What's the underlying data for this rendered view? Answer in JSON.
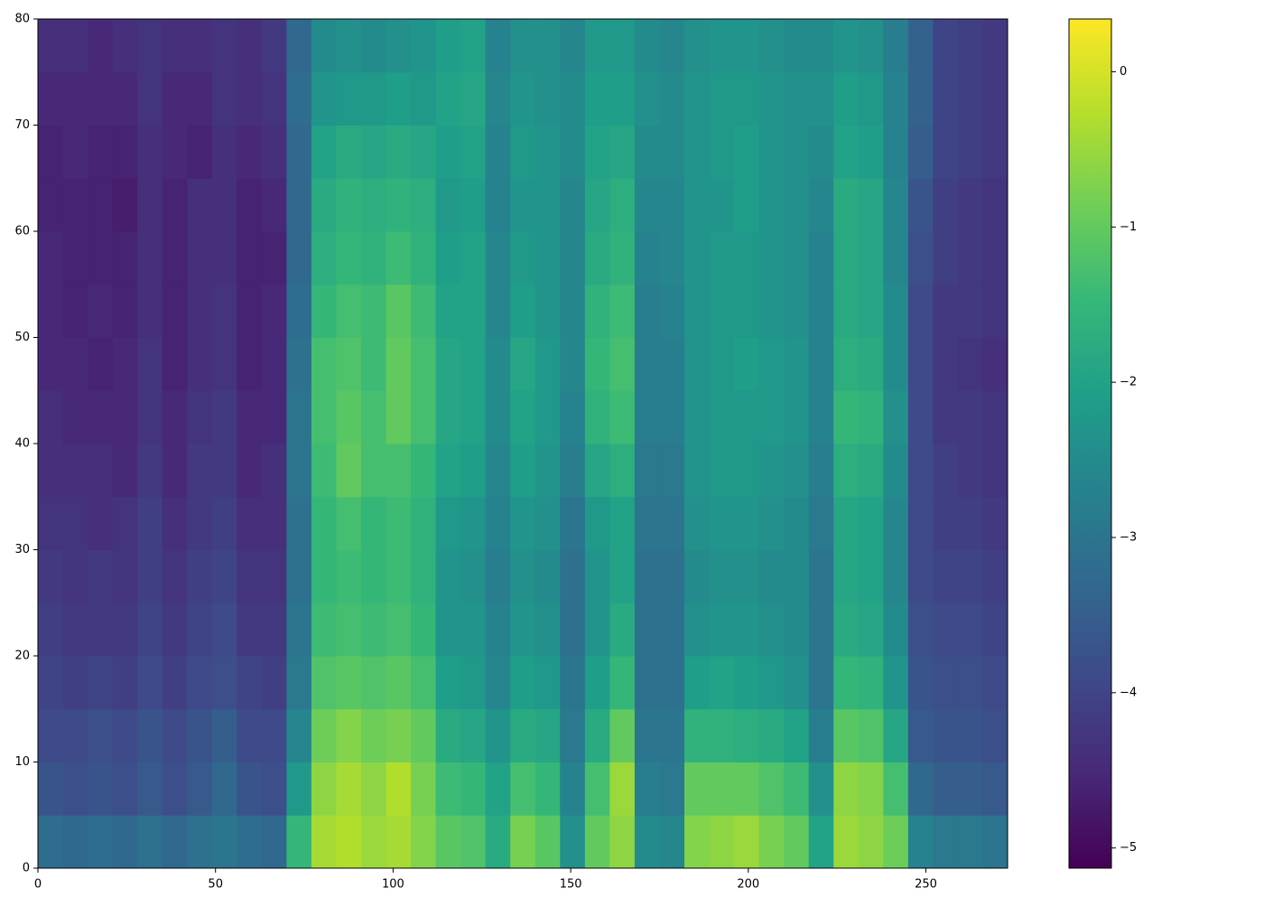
{
  "chart_data": {
    "type": "heatmap",
    "colormap": "viridis",
    "xlim": [
      0,
      273
    ],
    "ylim": [
      0,
      80
    ],
    "xticks": [
      0,
      50,
      100,
      150,
      200,
      250
    ],
    "yticks": [
      0,
      10,
      20,
      30,
      40,
      50,
      60,
      70,
      80
    ],
    "clim": [
      -5.13,
      0.34
    ],
    "cticks": [
      {
        "value": -5,
        "label": "−5"
      },
      {
        "value": -4,
        "label": "−4"
      },
      {
        "value": -3,
        "label": "−3"
      },
      {
        "value": -2,
        "label": "−2"
      },
      {
        "value": -1,
        "label": "−1"
      },
      0
    ],
    "x_bins": [
      0,
      7,
      14,
      21,
      28,
      35,
      42,
      49,
      56,
      63,
      70,
      77,
      84,
      91,
      98,
      105,
      112,
      119,
      126,
      133,
      140,
      147,
      154,
      161,
      168,
      175,
      182,
      189,
      196,
      203,
      210,
      217,
      224,
      231,
      238,
      245,
      252,
      259,
      266,
      273
    ],
    "y_bins": [
      0,
      5,
      10,
      15,
      20,
      25,
      30,
      35,
      40,
      45,
      50,
      55,
      60,
      65,
      70,
      75,
      80
    ],
    "values": [
      [
        -3.2,
        -3.7,
        -3.9,
        -4.0,
        -4.1,
        -4.2,
        -4.3,
        -4.4,
        -4.4,
        -4.5,
        -4.5,
        -4.5,
        -4.6,
        -4.6,
        -4.5,
        -4.4
      ],
      [
        -3.3,
        -3.8,
        -3.9,
        -4.1,
        -4.2,
        -4.3,
        -4.3,
        -4.4,
        -4.5,
        -4.5,
        -4.6,
        -4.6,
        -4.6,
        -4.5,
        -4.5,
        -4.4
      ],
      [
        -3.2,
        -3.7,
        -3.8,
        -4.0,
        -4.2,
        -4.2,
        -4.4,
        -4.4,
        -4.5,
        -4.6,
        -4.5,
        -4.6,
        -4.6,
        -4.6,
        -4.5,
        -4.5
      ],
      [
        -3.3,
        -3.8,
        -3.9,
        -4.1,
        -4.2,
        -4.3,
        -4.3,
        -4.5,
        -4.5,
        -4.5,
        -4.6,
        -4.6,
        -4.7,
        -4.6,
        -4.5,
        -4.4
      ],
      [
        -3.1,
        -3.6,
        -3.7,
        -3.9,
        -4.0,
        -4.1,
        -4.1,
        -4.2,
        -4.3,
        -4.3,
        -4.4,
        -4.4,
        -4.4,
        -4.4,
        -4.3,
        -4.3
      ],
      [
        -3.3,
        -3.8,
        -3.9,
        -4.1,
        -4.2,
        -4.3,
        -4.4,
        -4.5,
        -4.5,
        -4.6,
        -4.6,
        -4.6,
        -4.6,
        -4.5,
        -4.5,
        -4.4
      ],
      [
        -3.1,
        -3.6,
        -3.7,
        -3.9,
        -4.0,
        -4.1,
        -4.2,
        -4.2,
        -4.3,
        -4.4,
        -4.4,
        -4.4,
        -4.4,
        -4.6,
        -4.5,
        -4.4
      ],
      [
        -3.0,
        -3.3,
        -3.5,
        -3.8,
        -3.9,
        -4.0,
        -4.1,
        -4.2,
        -4.2,
        -4.3,
        -4.3,
        -4.4,
        -4.4,
        -4.4,
        -4.3,
        -4.3
      ],
      [
        -3.2,
        -3.7,
        -3.9,
        -4.0,
        -4.2,
        -4.3,
        -4.4,
        -4.5,
        -4.5,
        -4.6,
        -4.6,
        -4.6,
        -4.6,
        -4.5,
        -4.4,
        -4.4
      ],
      [
        -3.3,
        -3.8,
        -3.9,
        -4.1,
        -4.2,
        -4.3,
        -4.4,
        -4.4,
        -4.5,
        -4.5,
        -4.5,
        -4.6,
        -4.5,
        -4.4,
        -4.3,
        -4.2
      ],
      [
        -1.5,
        -2.2,
        -2.6,
        -2.9,
        -3.0,
        -3.1,
        -3.1,
        -3.0,
        -3.0,
        -3.1,
        -3.2,
        -3.3,
        -3.3,
        -3.3,
        -3.2,
        -3.3
      ],
      [
        -0.4,
        -0.6,
        -0.9,
        -1.2,
        -1.4,
        -1.5,
        -1.5,
        -1.4,
        -1.3,
        -1.3,
        -1.5,
        -1.7,
        -1.8,
        -2.0,
        -2.3,
        -2.5
      ],
      [
        -0.3,
        -0.4,
        -0.7,
        -1.1,
        -1.3,
        -1.4,
        -1.3,
        -1.0,
        -1.1,
        -1.2,
        -1.3,
        -1.5,
        -1.6,
        -1.8,
        -2.2,
        -2.4
      ],
      [
        -0.5,
        -0.6,
        -0.9,
        -1.2,
        -1.4,
        -1.5,
        -1.5,
        -1.3,
        -1.3,
        -1.4,
        -1.4,
        -1.6,
        -1.7,
        -1.9,
        -2.2,
        -2.5
      ],
      [
        -0.4,
        -0.3,
        -0.8,
        -1.1,
        -1.3,
        -1.4,
        -1.4,
        -1.3,
        -1.0,
        -1.0,
        -1.1,
        -1.4,
        -1.6,
        -1.8,
        -2.1,
        -2.4
      ],
      [
        -0.7,
        -0.8,
        -1.0,
        -1.3,
        -1.5,
        -1.6,
        -1.6,
        -1.5,
        -1.3,
        -1.3,
        -1.4,
        -1.6,
        -1.7,
        -1.9,
        -2.2,
        -2.3
      ],
      [
        -1.1,
        -1.4,
        -1.8,
        -2.1,
        -2.3,
        -2.3,
        -2.2,
        -2.0,
        -1.9,
        -1.9,
        -2.0,
        -2.1,
        -2.2,
        -2.1,
        -2.0,
        -2.1
      ],
      [
        -1.2,
        -1.5,
        -1.9,
        -2.2,
        -2.3,
        -2.4,
        -2.3,
        -2.1,
        -2.0,
        -2.0,
        -2.0,
        -2.0,
        -2.1,
        -2.0,
        -1.9,
        -2.0
      ],
      [
        -1.8,
        -2.0,
        -2.3,
        -2.6,
        -2.7,
        -2.8,
        -2.7,
        -2.6,
        -2.5,
        -2.5,
        -2.6,
        -2.6,
        -2.7,
        -2.7,
        -2.6,
        -2.7
      ],
      [
        -0.8,
        -1.3,
        -1.8,
        -2.1,
        -2.3,
        -2.4,
        -2.3,
        -2.1,
        -2.0,
        -1.9,
        -2.1,
        -2.2,
        -2.3,
        -2.2,
        -2.3,
        -2.4
      ],
      [
        -1.1,
        -1.5,
        -1.9,
        -2.2,
        -2.4,
        -2.5,
        -2.4,
        -2.3,
        -2.2,
        -2.2,
        -2.3,
        -2.3,
        -2.3,
        -2.3,
        -2.4,
        -2.4
      ],
      [
        -2.4,
        -2.7,
        -2.9,
        -3.0,
        -3.1,
        -3.1,
        -3.0,
        -2.8,
        -2.7,
        -2.6,
        -2.6,
        -2.6,
        -2.6,
        -2.5,
        -2.5,
        -2.6
      ],
      [
        -1.0,
        -1.3,
        -1.8,
        -2.1,
        -2.3,
        -2.3,
        -2.2,
        -1.9,
        -1.6,
        -1.5,
        -1.6,
        -1.8,
        -1.9,
        -2.0,
        -2.1,
        -2.2
      ],
      [
        -0.6,
        -0.5,
        -1.0,
        -1.5,
        -1.8,
        -2.0,
        -2.0,
        -1.7,
        -1.4,
        -1.3,
        -1.4,
        -1.6,
        -1.7,
        -1.9,
        -2.1,
        -2.2
      ],
      [
        -2.5,
        -2.8,
        -3.0,
        -3.1,
        -3.1,
        -3.1,
        -3.0,
        -2.9,
        -2.8,
        -2.8,
        -2.8,
        -2.7,
        -2.6,
        -2.5,
        -2.4,
        -2.5
      ],
      [
        -2.6,
        -2.9,
        -3.0,
        -3.1,
        -3.1,
        -3.1,
        -3.0,
        -2.9,
        -2.8,
        -2.8,
        -2.7,
        -2.6,
        -2.6,
        -2.5,
        -2.5,
        -2.6
      ],
      [
        -0.7,
        -1.0,
        -1.6,
        -2.1,
        -2.4,
        -2.5,
        -2.4,
        -2.3,
        -2.3,
        -2.3,
        -2.3,
        -2.3,
        -2.3,
        -2.3,
        -2.3,
        -2.4
      ],
      [
        -0.6,
        -1.0,
        -1.6,
        -2.0,
        -2.3,
        -2.4,
        -2.3,
        -2.2,
        -2.2,
        -2.2,
        -2.2,
        -2.2,
        -2.3,
        -2.2,
        -2.2,
        -2.3
      ],
      [
        -0.5,
        -1.0,
        -1.7,
        -2.1,
        -2.3,
        -2.4,
        -2.3,
        -2.2,
        -2.2,
        -2.1,
        -2.2,
        -2.2,
        -2.1,
        -2.1,
        -2.2,
        -2.3
      ],
      [
        -0.8,
        -1.2,
        -1.8,
        -2.2,
        -2.4,
        -2.5,
        -2.4,
        -2.3,
        -2.2,
        -2.2,
        -2.3,
        -2.3,
        -2.3,
        -2.3,
        -2.3,
        -2.4
      ],
      [
        -1.0,
        -1.4,
        -2.0,
        -2.4,
        -2.5,
        -2.5,
        -2.5,
        -2.4,
        -2.3,
        -2.3,
        -2.4,
        -2.4,
        -2.4,
        -2.4,
        -2.4,
        -2.5
      ],
      [
        -2.0,
        -2.4,
        -2.8,
        -3.0,
        -3.0,
        -3.0,
        -2.9,
        -2.8,
        -2.7,
        -2.7,
        -2.7,
        -2.7,
        -2.6,
        -2.5,
        -2.4,
        -2.5
      ],
      [
        -0.5,
        -0.6,
        -1.1,
        -1.5,
        -1.8,
        -1.9,
        -1.9,
        -1.7,
        -1.5,
        -1.7,
        -1.8,
        -1.8,
        -1.8,
        -2.0,
        -2.1,
        -2.3
      ],
      [
        -0.6,
        -0.7,
        -1.2,
        -1.6,
        -1.9,
        -2.0,
        -2.0,
        -1.8,
        -1.6,
        -1.8,
        -1.9,
        -1.9,
        -1.9,
        -2.1,
        -2.2,
        -2.4
      ],
      [
        -0.9,
        -1.3,
        -1.9,
        -2.3,
        -2.5,
        -2.6,
        -2.6,
        -2.5,
        -2.4,
        -2.5,
        -2.5,
        -2.6,
        -2.6,
        -2.7,
        -2.7,
        -2.8
      ],
      [
        -2.7,
        -3.3,
        -3.6,
        -3.7,
        -3.8,
        -3.9,
        -3.9,
        -3.9,
        -3.9,
        -3.9,
        -3.9,
        -3.8,
        -3.7,
        -3.5,
        -3.4,
        -3.4
      ],
      [
        -2.9,
        -3.5,
        -3.7,
        -3.8,
        -3.9,
        -4.0,
        -4.1,
        -4.1,
        -4.2,
        -4.2,
        -4.2,
        -4.1,
        -4.1,
        -4.0,
        -4.0,
        -4.0
      ],
      [
        -2.9,
        -3.5,
        -3.7,
        -3.8,
        -3.9,
        -4.0,
        -4.1,
        -4.2,
        -4.2,
        -4.3,
        -4.2,
        -4.2,
        -4.2,
        -4.1,
        -4.1,
        -4.1
      ],
      [
        -3.0,
        -3.6,
        -3.8,
        -3.9,
        -4.0,
        -4.1,
        -4.2,
        -4.3,
        -4.3,
        -4.4,
        -4.3,
        -4.3,
        -4.3,
        -4.2,
        -4.2,
        -4.2
      ]
    ]
  }
}
